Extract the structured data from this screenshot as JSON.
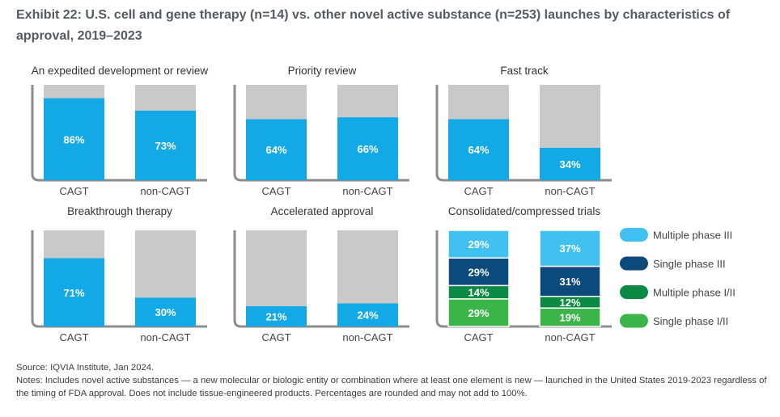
{
  "title": "Exhibit 22: U.S. cell and gene therapy (n=14) vs. other novel active substance (n=253) launches by characteristics of approval, 2019–2023",
  "colors": {
    "bar_fill": "#13a9e6",
    "bar_remainder": "#c9c9c9",
    "frame": "#8c8c8c",
    "multiple_phase_3": "#41c1ef",
    "single_phase_3": "#0d4a7c",
    "multiple_phase_1_2": "#0a8a43",
    "single_phase_1_2": "#3bb54a"
  },
  "chart_data": [
    {
      "type": "bar",
      "title": "An expedited development or review",
      "categories": [
        "CAGT",
        "non-CAGT"
      ],
      "values": [
        86,
        73
      ],
      "labels": [
        "86%",
        "73%"
      ],
      "ylim": [
        0,
        100
      ]
    },
    {
      "type": "bar",
      "title": "Priority review",
      "categories": [
        "CAGT",
        "non-CAGT"
      ],
      "values": [
        64,
        66
      ],
      "labels": [
        "64%",
        "66%"
      ],
      "ylim": [
        0,
        100
      ]
    },
    {
      "type": "bar",
      "title": "Fast track",
      "categories": [
        "CAGT",
        "non-CAGT"
      ],
      "values": [
        64,
        34
      ],
      "labels": [
        "64%",
        "34%"
      ],
      "ylim": [
        0,
        100
      ]
    },
    {
      "type": "bar",
      "title": "Breakthrough therapy",
      "categories": [
        "CAGT",
        "non-CAGT"
      ],
      "values": [
        71,
        30
      ],
      "labels": [
        "71%",
        "30%"
      ],
      "ylim": [
        0,
        100
      ]
    },
    {
      "type": "bar",
      "title": "Accelerated approval",
      "categories": [
        "CAGT",
        "non-CAGT"
      ],
      "values": [
        21,
        24
      ],
      "labels": [
        "21%",
        "24%"
      ],
      "ylim": [
        0,
        100
      ]
    },
    {
      "type": "stacked-bar",
      "title": "Consolidated/compressed trials",
      "categories": [
        "CAGT",
        "non-CAGT"
      ],
      "series": [
        {
          "name": "Single phase I/II",
          "values": [
            29,
            19
          ],
          "labels": [
            "29%",
            "19%"
          ]
        },
        {
          "name": "Multiple phase I/II",
          "values": [
            14,
            12
          ],
          "labels": [
            "14%",
            "12%"
          ]
        },
        {
          "name": "Single phase III",
          "values": [
            29,
            31
          ],
          "labels": [
            "29%",
            "31%"
          ]
        },
        {
          "name": "Multiple phase III",
          "values": [
            29,
            37
          ],
          "labels": [
            "29%",
            "37%"
          ]
        }
      ],
      "legend": [
        "Multiple phase III",
        "Single phase III",
        "Multiple phase I/II",
        "Single phase I/II"
      ],
      "legend_position": "right",
      "ylim": [
        0,
        100
      ]
    }
  ],
  "source": "Source: IQVIA Institute, Jan 2024.",
  "notes": "Notes: Includes novel active substances — a new molecular or biologic entity or combination where at least one element is new — launched in the United States 2019-2023 regardless of the timing of FDA approval. Does not include tissue-engineered products. Percentages are rounded and may not add to 100%."
}
